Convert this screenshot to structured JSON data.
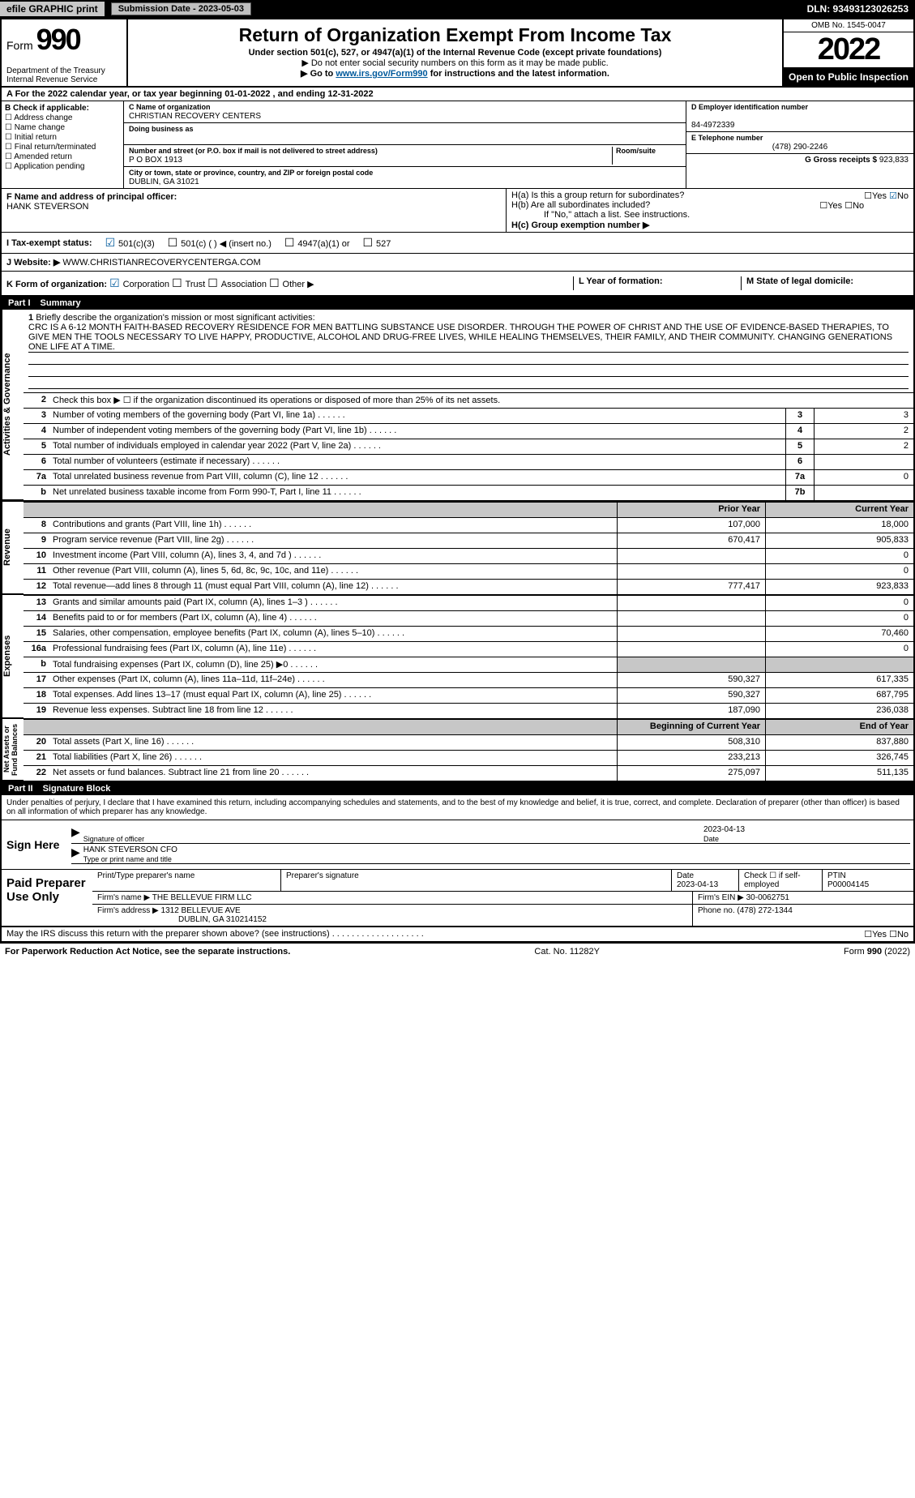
{
  "topbar": {
    "efile": "efile GRAPHIC print",
    "submission": "Submission Date - 2023-05-03",
    "dln": "DLN: 93493123026253"
  },
  "header": {
    "form": "Form",
    "formnum": "990",
    "title": "Return of Organization Exempt From Income Tax",
    "sub1": "Under section 501(c), 527, or 4947(a)(1) of the Internal Revenue Code (except private foundations)",
    "sub2": "▶ Do not enter social security numbers on this form as it may be made public.",
    "sub3": "▶ Go to www.irs.gov/Form990 for instructions and the latest information.",
    "dept": "Department of the Treasury\nInternal Revenue Service",
    "omb": "OMB No. 1545-0047",
    "year": "2022",
    "inspect": "Open to Public Inspection"
  },
  "rowA": "A For the 2022 calendar year, or tax year beginning 01-01-2022   , and ending 12-31-2022",
  "colB": {
    "hdr": "B Check if applicable:",
    "opts": [
      "Address change",
      "Name change",
      "Initial return",
      "Final return/terminated",
      "Amended return",
      "Application pending"
    ]
  },
  "colC": {
    "name_lbl": "C Name of organization",
    "name": "CHRISTIAN RECOVERY CENTERS",
    "dba_lbl": "Doing business as",
    "dba": "",
    "addr_lbl": "Number and street (or P.O. box if mail is not delivered to street address)",
    "room_lbl": "Room/suite",
    "addr": "P O BOX 1913",
    "city_lbl": "City or town, state or province, country, and ZIP or foreign postal code",
    "city": "DUBLIN, GA  31021"
  },
  "colD": {
    "ein_lbl": "D Employer identification number",
    "ein": "84-4972339",
    "tel_lbl": "E Telephone number",
    "tel": "(478) 290-2246",
    "gross_lbl": "G Gross receipts $",
    "gross": "923,833"
  },
  "rowF": {
    "lbl": "F  Name and address of principal officer:",
    "name": "HANK STEVERSON",
    "h_a": "H(a)  Is this a group return for subordinates?",
    "h_b": "H(b)  Are all subordinates included?",
    "h_note": "If \"No,\" attach a list. See instructions.",
    "h_c": "H(c)  Group exemption number ▶",
    "yes": "Yes",
    "no": "No"
  },
  "rowI": {
    "lbl": "I  Tax-exempt status:",
    "o1": "501(c)(3)",
    "o2": "501(c) (  ) ◀ (insert no.)",
    "o3": "4947(a)(1) or",
    "o4": "527"
  },
  "rowJ": {
    "lbl": "J  Website: ▶",
    "val": "WWW.CHRISTIANRECOVERYCENTERGA.COM"
  },
  "rowK": {
    "lbl": "K Form of organization:",
    "corp": "Corporation",
    "trust": "Trust",
    "assoc": "Association",
    "other": "Other ▶",
    "l": "L Year of formation:",
    "m": "M State of legal domicile:"
  },
  "part1": {
    "num": "Part I",
    "title": "Summary"
  },
  "vtabs": {
    "ag": "Activities & Governance",
    "rev": "Revenue",
    "exp": "Expenses",
    "net": "Net Assets or\nFund Balances"
  },
  "mission": {
    "num": "1",
    "lbl": "Briefly describe the organization's mission or most significant activities:",
    "text": "CRC IS A 6-12 MONTH FAITH-BASED RECOVERY RESIDENCE FOR MEN BATTLING SUBSTANCE USE DISORDER. THROUGH THE POWER OF CHRIST AND THE USE OF EVIDENCE-BASED THERAPIES, TO GIVE MEN THE TOOLS NECESSARY TO LIVE HAPPY, PRODUCTIVE, ALCOHOL AND DRUG-FREE LIVES, WHILE HEALING THEMSELVES, THEIR FAMILY, AND THEIR COMMUNITY. CHANGING GENERATIONS ONE LIFE AT A TIME."
  },
  "lines_ag": [
    {
      "n": "2",
      "t": "Check this box ▶ ☐  if the organization discontinued its operations or disposed of more than 25% of its net assets.",
      "box": "",
      "v": ""
    },
    {
      "n": "3",
      "t": "Number of voting members of the governing body (Part VI, line 1a)",
      "box": "3",
      "v": "3"
    },
    {
      "n": "4",
      "t": "Number of independent voting members of the governing body (Part VI, line 1b)",
      "box": "4",
      "v": "2"
    },
    {
      "n": "5",
      "t": "Total number of individuals employed in calendar year 2022 (Part V, line 2a)",
      "box": "5",
      "v": "2"
    },
    {
      "n": "6",
      "t": "Total number of volunteers (estimate if necessary)",
      "box": "6",
      "v": ""
    },
    {
      "n": "7a",
      "t": "Total unrelated business revenue from Part VIII, column (C), line 12",
      "box": "7a",
      "v": "0"
    },
    {
      "n": "b",
      "t": "Net unrelated business taxable income from Form 990-T, Part I, line 11",
      "box": "7b",
      "v": ""
    }
  ],
  "col_hdrs": {
    "prior": "Prior Year",
    "current": "Current Year",
    "boy": "Beginning of Current Year",
    "eoy": "End of Year"
  },
  "lines_rev": [
    {
      "n": "8",
      "t": "Contributions and grants (Part VIII, line 1h)",
      "p": "107,000",
      "c": "18,000"
    },
    {
      "n": "9",
      "t": "Program service revenue (Part VIII, line 2g)",
      "p": "670,417",
      "c": "905,833"
    },
    {
      "n": "10",
      "t": "Investment income (Part VIII, column (A), lines 3, 4, and 7d )",
      "p": "",
      "c": "0"
    },
    {
      "n": "11",
      "t": "Other revenue (Part VIII, column (A), lines 5, 6d, 8c, 9c, 10c, and 11e)",
      "p": "",
      "c": "0"
    },
    {
      "n": "12",
      "t": "Total revenue—add lines 8 through 11 (must equal Part VIII, column (A), line 12)",
      "p": "777,417",
      "c": "923,833"
    }
  ],
  "lines_exp": [
    {
      "n": "13",
      "t": "Grants and similar amounts paid (Part IX, column (A), lines 1–3 )",
      "p": "",
      "c": "0"
    },
    {
      "n": "14",
      "t": "Benefits paid to or for members (Part IX, column (A), line 4)",
      "p": "",
      "c": "0"
    },
    {
      "n": "15",
      "t": "Salaries, other compensation, employee benefits (Part IX, column (A), lines 5–10)",
      "p": "",
      "c": "70,460"
    },
    {
      "n": "16a",
      "t": "Professional fundraising fees (Part IX, column (A), line 11e)",
      "p": "",
      "c": "0"
    },
    {
      "n": "b",
      "t": "Total fundraising expenses (Part IX, column (D), line 25) ▶0",
      "p": "grey",
      "c": "grey"
    },
    {
      "n": "17",
      "t": "Other expenses (Part IX, column (A), lines 11a–11d, 11f–24e)",
      "p": "590,327",
      "c": "617,335"
    },
    {
      "n": "18",
      "t": "Total expenses. Add lines 13–17 (must equal Part IX, column (A), line 25)",
      "p": "590,327",
      "c": "687,795"
    },
    {
      "n": "19",
      "t": "Revenue less expenses. Subtract line 18 from line 12",
      "p": "187,090",
      "c": "236,038"
    }
  ],
  "lines_net": [
    {
      "n": "20",
      "t": "Total assets (Part X, line 16)",
      "p": "508,310",
      "c": "837,880"
    },
    {
      "n": "21",
      "t": "Total liabilities (Part X, line 26)",
      "p": "233,213",
      "c": "326,745"
    },
    {
      "n": "22",
      "t": "Net assets or fund balances. Subtract line 21 from line 20",
      "p": "275,097",
      "c": "511,135"
    }
  ],
  "part2": {
    "num": "Part II",
    "title": "Signature Block"
  },
  "penalty": "Under penalties of perjury, I declare that I have examined this return, including accompanying schedules and statements, and to the best of my knowledge and belief, it is true, correct, and complete. Declaration of preparer (other than officer) is based on all information of which preparer has any knowledge.",
  "sign": {
    "here": "Sign Here",
    "sig_lbl": "Signature of officer",
    "date_lbl": "Date",
    "date": "2023-04-13",
    "name": "HANK STEVERSON CFO",
    "name_lbl": "Type or print name and title"
  },
  "prep": {
    "title": "Paid Preparer Use Only",
    "c1": "Print/Type preparer's name",
    "c2": "Preparer's signature",
    "c3": "Date",
    "c3v": "2023-04-13",
    "c4": "Check ☐ if self-employed",
    "c5": "PTIN",
    "c5v": "P00004145",
    "firm_lbl": "Firm's name    ▶",
    "firm": "THE BELLEVUE FIRM LLC",
    "ein_lbl": "Firm's EIN ▶",
    "ein": "30-0062751",
    "addr_lbl": "Firm's address ▶",
    "addr": "1312 BELLEVUE AVE",
    "addr2": "DUBLIN, GA  310214152",
    "phone_lbl": "Phone no.",
    "phone": "(478) 272-1344"
  },
  "discuss": "May the IRS discuss this return with the preparer shown above? (see instructions)",
  "footer": {
    "left": "For Paperwork Reduction Act Notice, see the separate instructions.",
    "mid": "Cat. No. 11282Y",
    "right": "Form 990 (2022)"
  }
}
